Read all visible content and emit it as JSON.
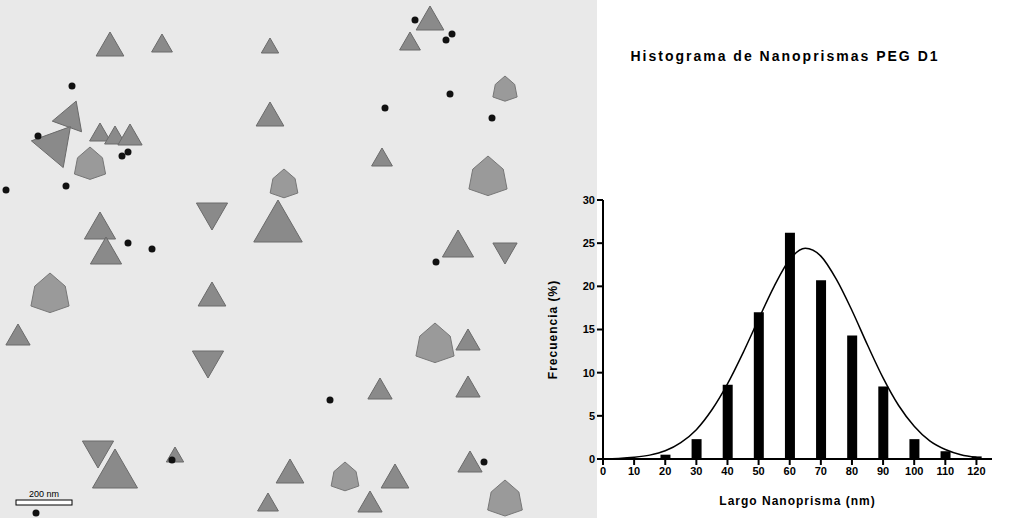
{
  "micrograph": {
    "scale_bar": "200 nm"
  },
  "chart_data": {
    "type": "bar",
    "title": "Histograma de Nanoprismas PEG D1",
    "x_label": "Largo Nanoprisma (nm)",
    "y_label": "Frecuencia (%)",
    "x": [
      20,
      30,
      40,
      50,
      60,
      70,
      80,
      90,
      100,
      110,
      120
    ],
    "values": [
      0.5,
      2.3,
      8.6,
      17,
      26.2,
      20.7,
      14.3,
      8.4,
      2.3,
      0.9,
      0.3
    ],
    "color": "#000000",
    "fit": {
      "type": "line",
      "color": "#000000",
      "x": [
        0,
        5,
        10,
        15,
        20,
        25,
        30,
        35,
        40,
        45,
        50,
        55,
        60,
        65,
        70,
        75,
        80,
        85,
        90,
        95,
        100,
        105,
        110,
        115,
        120
      ],
      "values": [
        0.02,
        0.07,
        0.2,
        0.45,
        0.95,
        1.9,
        3.4,
        5.7,
        8.7,
        12.3,
        16.2,
        20,
        23.1,
        24.4,
        23.5,
        20.8,
        17.2,
        13.2,
        9.4,
        6.2,
        3.8,
        2.1,
        1.1,
        0.5,
        0.2
      ]
    },
    "xlim": [
      0,
      125
    ],
    "xticks": [
      0,
      10,
      20,
      30,
      40,
      50,
      60,
      70,
      80,
      90,
      100,
      110,
      120
    ],
    "ylim": [
      0,
      30
    ],
    "yticks": [
      0,
      5,
      10,
      15,
      20,
      25,
      30
    ],
    "grid": false
  }
}
